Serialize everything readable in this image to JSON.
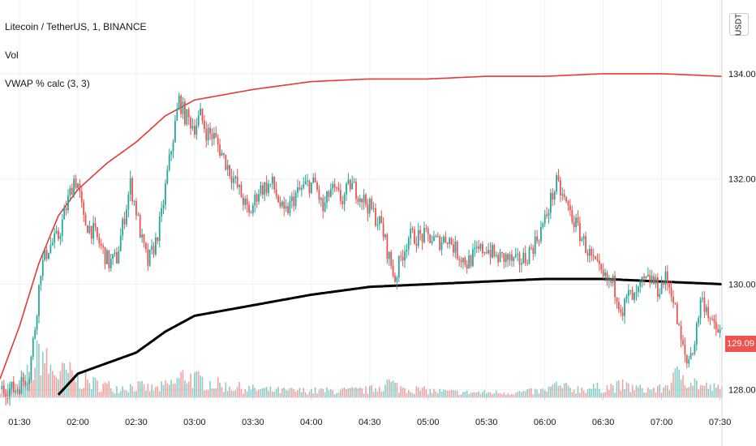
{
  "header": {
    "symbol": "Litecoin / TetherUS, 1, BINANCE",
    "vol_label": "Vol",
    "indicator": "VWAP % calc (3, 3)"
  },
  "currency_button": "USDT",
  "last_price_tag": "129.09",
  "colors": {
    "up": "#26a69a",
    "down": "#ef5350",
    "upper_band": "#e53935",
    "vwap": "#000000",
    "grid": "#eef0f3",
    "text": "#131722"
  },
  "chart_data": {
    "type": "candlestick",
    "x_ticks": [
      "01:30",
      "02:00",
      "02:30",
      "03:00",
      "03:30",
      "04:00",
      "04:30",
      "05:00",
      "05:30",
      "06:00",
      "06:30",
      "07:00",
      "07:30"
    ],
    "x_range": [
      "01:20",
      "07:31"
    ],
    "y_ticks": [
      "134.00",
      "132.00",
      "130.00",
      "128.00"
    ],
    "ylim": [
      127.85,
      135.4
    ],
    "grid": true,
    "price_path": [
      [
        "01:20",
        128.0
      ],
      [
        "01:28",
        128.0
      ],
      [
        "01:35",
        128.3
      ],
      [
        "01:38",
        129.2
      ],
      [
        "01:41",
        130.3
      ],
      [
        "01:45",
        130.7
      ],
      [
        "01:50",
        130.9
      ],
      [
        "01:55",
        131.6
      ],
      [
        "01:58",
        132.0
      ],
      [
        "02:00",
        131.9
      ],
      [
        "02:03",
        131.2
      ],
      [
        "02:08",
        131.0
      ],
      [
        "02:12",
        130.7
      ],
      [
        "02:16",
        130.4
      ],
      [
        "02:20",
        130.5
      ],
      [
        "02:24",
        131.3
      ],
      [
        "02:27",
        131.9
      ],
      [
        "02:30",
        131.4
      ],
      [
        "02:33",
        130.8
      ],
      [
        "02:36",
        130.4
      ],
      [
        "02:40",
        130.8
      ],
      [
        "02:43",
        131.3
      ],
      [
        "02:46",
        132.1
      ],
      [
        "02:49",
        132.8
      ],
      [
        "02:52",
        133.5
      ],
      [
        "02:55",
        133.2
      ],
      [
        "03:00",
        133.0
      ],
      [
        "03:03",
        133.2
      ],
      [
        "03:06",
        132.9
      ],
      [
        "03:10",
        132.8
      ],
      [
        "03:15",
        132.4
      ],
      [
        "03:20",
        132.0
      ],
      [
        "03:25",
        131.6
      ],
      [
        "03:28",
        131.3
      ],
      [
        "03:33",
        131.8
      ],
      [
        "03:40",
        131.9
      ],
      [
        "03:46",
        131.3
      ],
      [
        "03:52",
        131.7
      ],
      [
        "03:58",
        131.9
      ],
      [
        "04:02",
        131.9
      ],
      [
        "04:06",
        131.4
      ],
      [
        "04:10",
        131.8
      ],
      [
        "04:16",
        131.6
      ],
      [
        "04:20",
        131.9
      ],
      [
        "04:25",
        131.7
      ],
      [
        "04:31",
        131.4
      ],
      [
        "04:36",
        131.1
      ],
      [
        "04:40",
        130.5
      ],
      [
        "04:43",
        130.1
      ],
      [
        "04:46",
        130.5
      ],
      [
        "04:50",
        130.9
      ],
      [
        "04:55",
        130.9
      ],
      [
        "05:00",
        130.9
      ],
      [
        "05:05",
        130.8
      ],
      [
        "05:10",
        130.9
      ],
      [
        "05:15",
        130.6
      ],
      [
        "05:20",
        130.4
      ],
      [
        "05:25",
        130.6
      ],
      [
        "05:30",
        130.7
      ],
      [
        "05:35",
        130.5
      ],
      [
        "05:40",
        130.5
      ],
      [
        "05:45",
        130.4
      ],
      [
        "05:50",
        130.5
      ],
      [
        "05:55",
        130.8
      ],
      [
        "06:00",
        131.2
      ],
      [
        "06:03",
        131.6
      ],
      [
        "06:06",
        131.9
      ],
      [
        "06:10",
        131.6
      ],
      [
        "06:15",
        131.2
      ],
      [
        "06:20",
        130.8
      ],
      [
        "06:25",
        130.4
      ],
      [
        "06:30",
        130.1
      ],
      [
        "06:35",
        130.0
      ],
      [
        "06:40",
        129.5
      ],
      [
        "06:43",
        129.8
      ],
      [
        "06:46",
        129.7
      ],
      [
        "06:50",
        130.0
      ],
      [
        "06:55",
        130.1
      ],
      [
        "06:58",
        129.9
      ],
      [
        "07:02",
        130.1
      ],
      [
        "07:05",
        129.9
      ],
      [
        "07:08",
        129.3
      ],
      [
        "07:10",
        128.9
      ],
      [
        "07:13",
        128.5
      ],
      [
        "07:17",
        128.9
      ],
      [
        "07:20",
        129.7
      ],
      [
        "07:23",
        129.6
      ],
      [
        "07:26",
        129.2
      ],
      [
        "07:29",
        129.1
      ],
      [
        "07:31",
        129.1
      ]
    ],
    "upper_band": [
      [
        "01:20",
        128.2
      ],
      [
        "01:30",
        129.2
      ],
      [
        "01:40",
        130.4
      ],
      [
        "01:50",
        131.3
      ],
      [
        "02:00",
        131.8
      ],
      [
        "02:15",
        132.3
      ],
      [
        "02:30",
        132.7
      ],
      [
        "02:45",
        133.2
      ],
      [
        "03:00",
        133.5
      ],
      [
        "03:30",
        133.7
      ],
      [
        "04:00",
        133.85
      ],
      [
        "04:30",
        133.9
      ],
      [
        "05:00",
        133.9
      ],
      [
        "05:30",
        133.95
      ],
      [
        "06:00",
        133.95
      ],
      [
        "06:30",
        134.0
      ],
      [
        "07:00",
        134.0
      ],
      [
        "07:31",
        133.95
      ]
    ],
    "vwap_line": [
      [
        "01:50",
        127.9
      ],
      [
        "02:00",
        128.3
      ],
      [
        "02:15",
        128.5
      ],
      [
        "02:30",
        128.7
      ],
      [
        "02:45",
        129.1
      ],
      [
        "03:00",
        129.4
      ],
      [
        "03:30",
        129.6
      ],
      [
        "04:00",
        129.8
      ],
      [
        "04:30",
        129.95
      ],
      [
        "05:00",
        130.0
      ],
      [
        "05:30",
        130.05
      ],
      [
        "06:00",
        130.1
      ],
      [
        "06:30",
        130.1
      ],
      [
        "07:00",
        130.05
      ],
      [
        "07:31",
        130.0
      ]
    ],
    "volume": [
      [
        "01:20",
        12
      ],
      [
        "01:30",
        14
      ],
      [
        "01:38",
        40
      ],
      [
        "01:41",
        58
      ],
      [
        "01:45",
        35
      ],
      [
        "01:50",
        28
      ],
      [
        "01:55",
        30
      ],
      [
        "02:00",
        22
      ],
      [
        "02:10",
        16
      ],
      [
        "02:20",
        12
      ],
      [
        "02:30",
        14
      ],
      [
        "02:40",
        10
      ],
      [
        "02:50",
        18
      ],
      [
        "02:55",
        28
      ],
      [
        "03:00",
        22
      ],
      [
        "03:15",
        14
      ],
      [
        "03:30",
        10
      ],
      [
        "03:45",
        8
      ],
      [
        "04:00",
        8
      ],
      [
        "04:15",
        8
      ],
      [
        "04:30",
        9
      ],
      [
        "04:40",
        18
      ],
      [
        "04:45",
        12
      ],
      [
        "05:00",
        8
      ],
      [
        "05:15",
        6
      ],
      [
        "05:30",
        6
      ],
      [
        "05:45",
        6
      ],
      [
        "06:00",
        8
      ],
      [
        "06:05",
        14
      ],
      [
        "06:15",
        10
      ],
      [
        "06:30",
        12
      ],
      [
        "06:40",
        14
      ],
      [
        "06:50",
        10
      ],
      [
        "07:00",
        10
      ],
      [
        "07:05",
        20
      ],
      [
        "07:10",
        30
      ],
      [
        "07:15",
        22
      ],
      [
        "07:20",
        14
      ],
      [
        "07:31",
        10
      ]
    ]
  }
}
